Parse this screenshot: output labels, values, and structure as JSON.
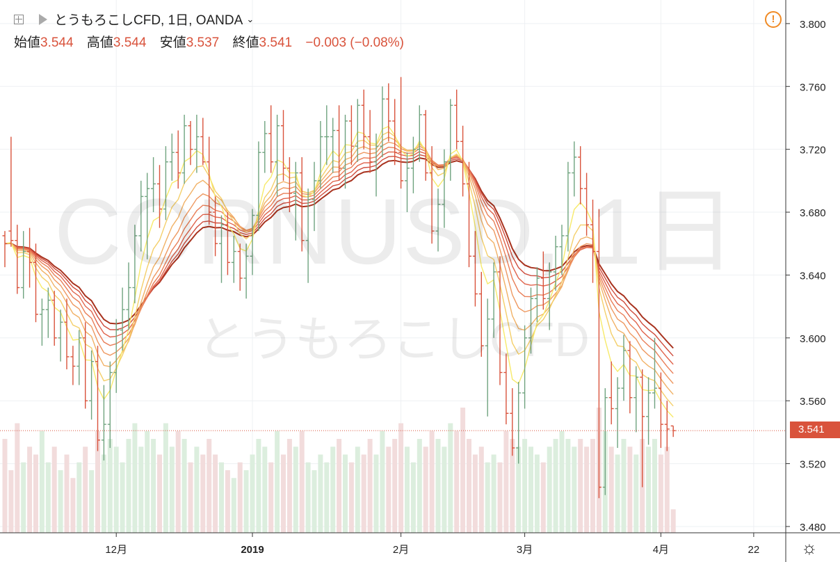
{
  "header": {
    "title": "とうもろこしCFD, 1日, OANDA",
    "ohlc": [
      {
        "label": "始値",
        "value": "3.544"
      },
      {
        "label": "高値",
        "value": "3.544"
      },
      {
        "label": "安値",
        "value": "3.537"
      },
      {
        "label": "終値",
        "value": "3.541"
      }
    ],
    "change": "−0.003 (−0.08%)"
  },
  "watermark": {
    "symbol": "CORNUSD, 1日",
    "name": "とうもろこしCFD"
  },
  "colors": {
    "up": "#6fa37f",
    "down": "#d9533c",
    "vol_up": "#dceede",
    "vol_down": "#f2dcdc",
    "grid": "#eef0f3"
  },
  "ribbon_colors": [
    "#f7ea6a",
    "#f4cf6a",
    "#f1b165",
    "#ee9860",
    "#e97e57",
    "#e0644c",
    "#cf4d3d",
    "#a8321e"
  ],
  "current_price": "3.541",
  "chart_data": {
    "type": "ohlc",
    "ylim": [
      3.476,
      3.815
    ],
    "y_ticks": [
      "3.800",
      "3.760",
      "3.720",
      "3.680",
      "3.640",
      "3.600",
      "3.560",
      "3.520",
      "3.480"
    ],
    "x_ticks": [
      {
        "label": "12月",
        "index": 18
      },
      {
        "label": "2019",
        "index": 40
      },
      {
        "label": "2月",
        "index": 64
      },
      {
        "label": "3月",
        "index": 84
      },
      {
        "label": "4月",
        "index": 106
      },
      {
        "label": "22",
        "index": 121
      }
    ],
    "bars": [
      [
        3.665,
        3.668,
        3.645,
        3.66,
        12
      ],
      [
        3.668,
        3.728,
        3.658,
        3.662,
        8
      ],
      [
        3.662,
        3.672,
        3.628,
        3.632,
        14
      ],
      [
        3.632,
        3.668,
        3.625,
        3.655,
        9
      ],
      [
        3.655,
        3.67,
        3.632,
        3.648,
        11
      ],
      [
        3.648,
        3.66,
        3.61,
        3.615,
        10
      ],
      [
        3.615,
        3.625,
        3.595,
        3.618,
        13
      ],
      [
        3.618,
        3.632,
        3.6,
        3.624,
        9
      ],
      [
        3.624,
        3.63,
        3.595,
        3.6,
        11
      ],
      [
        3.6,
        3.618,
        3.585,
        3.61,
        8
      ],
      [
        3.61,
        3.625,
        3.58,
        3.588,
        10
      ],
      [
        3.588,
        3.595,
        3.57,
        3.582,
        7
      ],
      [
        3.582,
        3.605,
        3.57,
        3.6,
        9
      ],
      [
        3.6,
        3.61,
        3.555,
        3.56,
        11
      ],
      [
        3.56,
        3.592,
        3.548,
        3.585,
        8
      ],
      [
        3.585,
        3.595,
        3.528,
        3.535,
        13
      ],
      [
        3.535,
        3.57,
        3.522,
        3.545,
        10
      ],
      [
        3.545,
        3.585,
        3.53,
        3.578,
        12
      ],
      [
        3.578,
        3.612,
        3.565,
        3.605,
        11
      ],
      [
        3.605,
        3.632,
        3.592,
        3.618,
        9
      ],
      [
        3.618,
        3.648,
        3.605,
        3.632,
        12
      ],
      [
        3.632,
        3.672,
        3.622,
        3.665,
        14
      ],
      [
        3.665,
        3.7,
        3.655,
        3.69,
        11
      ],
      [
        3.69,
        3.705,
        3.65,
        3.695,
        13
      ],
      [
        3.695,
        3.715,
        3.68,
        3.698,
        12
      ],
      [
        3.698,
        3.71,
        3.67,
        3.682,
        10
      ],
      [
        3.682,
        3.722,
        3.675,
        3.712,
        14
      ],
      [
        3.712,
        3.73,
        3.7,
        3.718,
        11
      ],
      [
        3.718,
        3.732,
        3.695,
        3.705,
        13
      ],
      [
        3.705,
        3.742,
        3.698,
        3.735,
        12
      ],
      [
        3.735,
        3.738,
        3.71,
        3.72,
        9
      ],
      [
        3.72,
        3.742,
        3.705,
        3.728,
        11
      ],
      [
        3.728,
        3.74,
        3.71,
        3.712,
        10
      ],
      [
        3.712,
        3.728,
        3.672,
        3.68,
        12
      ],
      [
        3.68,
        3.69,
        3.652,
        3.66,
        10
      ],
      [
        3.66,
        3.678,
        3.635,
        3.672,
        9
      ],
      [
        3.672,
        3.68,
        3.64,
        3.648,
        8
      ],
      [
        3.648,
        3.665,
        3.635,
        3.655,
        7
      ],
      [
        3.655,
        3.66,
        3.63,
        3.638,
        9
      ],
      [
        3.638,
        3.66,
        3.625,
        3.652,
        8
      ],
      [
        3.652,
        3.682,
        3.64,
        3.678,
        10
      ],
      [
        3.678,
        3.725,
        3.668,
        3.718,
        12
      ],
      [
        3.718,
        3.738,
        3.705,
        3.73,
        11
      ],
      [
        3.73,
        3.748,
        3.705,
        3.712,
        9
      ],
      [
        3.712,
        3.742,
        3.69,
        3.735,
        13
      ],
      [
        3.735,
        3.745,
        3.7,
        3.708,
        10
      ],
      [
        3.708,
        3.715,
        3.68,
        3.692,
        12
      ],
      [
        3.692,
        3.712,
        3.662,
        3.705,
        11
      ],
      [
        3.705,
        3.715,
        3.655,
        3.662,
        13
      ],
      [
        3.662,
        3.695,
        3.635,
        3.688,
        9
      ],
      [
        3.688,
        3.712,
        3.668,
        3.7,
        8
      ],
      [
        3.7,
        3.738,
        3.695,
        3.728,
        10
      ],
      [
        3.728,
        3.748,
        3.71,
        3.728,
        9
      ],
      [
        3.728,
        3.74,
        3.705,
        3.732,
        11
      ],
      [
        3.732,
        3.748,
        3.7,
        3.708,
        12
      ],
      [
        3.708,
        3.742,
        3.695,
        3.738,
        10
      ],
      [
        3.738,
        3.748,
        3.71,
        3.722,
        9
      ],
      [
        3.722,
        3.752,
        3.712,
        3.748,
        11
      ],
      [
        3.748,
        3.758,
        3.72,
        3.728,
        10
      ],
      [
        3.728,
        3.745,
        3.705,
        3.712,
        12
      ],
      [
        3.712,
        3.73,
        3.69,
        3.722,
        10
      ],
      [
        3.722,
        3.76,
        3.715,
        3.752,
        13
      ],
      [
        3.752,
        3.762,
        3.725,
        3.738,
        11
      ],
      [
        3.738,
        3.752,
        3.71,
        3.718,
        12
      ],
      [
        3.718,
        3.766,
        3.695,
        3.7,
        14
      ],
      [
        3.7,
        3.718,
        3.68,
        3.708,
        11
      ],
      [
        3.708,
        3.728,
        3.692,
        3.72,
        9
      ],
      [
        3.72,
        3.748,
        3.712,
        3.742,
        12
      ],
      [
        3.742,
        3.745,
        3.7,
        3.705,
        11
      ],
      [
        3.705,
        3.722,
        3.66,
        3.668,
        13
      ],
      [
        3.668,
        3.695,
        3.655,
        3.685,
        12
      ],
      [
        3.685,
        3.72,
        3.67,
        3.712,
        11
      ],
      [
        3.712,
        3.752,
        3.7,
        3.748,
        14
      ],
      [
        3.748,
        3.758,
        3.72,
        3.725,
        13
      ],
      [
        3.725,
        3.735,
        3.69,
        3.698,
        16
      ],
      [
        3.698,
        3.712,
        3.645,
        3.652,
        12
      ],
      [
        3.652,
        3.668,
        3.62,
        3.628,
        10
      ],
      [
        3.628,
        3.642,
        3.588,
        3.595,
        11
      ],
      [
        3.595,
        3.625,
        3.55,
        3.612,
        9
      ],
      [
        3.612,
        3.648,
        3.6,
        3.642,
        10
      ],
      [
        3.642,
        3.652,
        3.57,
        3.578,
        9
      ],
      [
        3.578,
        3.59,
        3.545,
        3.552,
        13
      ],
      [
        3.552,
        3.568,
        3.525,
        3.53,
        12
      ],
      [
        3.53,
        3.572,
        3.52,
        3.565,
        11
      ],
      [
        3.565,
        3.608,
        3.555,
        3.6,
        12
      ],
      [
        3.6,
        3.632,
        3.59,
        3.625,
        11
      ],
      [
        3.625,
        3.645,
        3.61,
        3.638,
        10
      ],
      [
        3.638,
        3.655,
        3.618,
        3.625,
        9
      ],
      [
        3.625,
        3.648,
        3.605,
        3.642,
        11
      ],
      [
        3.642,
        3.665,
        3.63,
        3.658,
        12
      ],
      [
        3.658,
        3.672,
        3.64,
        3.665,
        13
      ],
      [
        3.665,
        3.712,
        3.655,
        3.705,
        12
      ],
      [
        3.705,
        3.725,
        3.69,
        3.715,
        11
      ],
      [
        3.715,
        3.722,
        3.685,
        3.695,
        12
      ],
      [
        3.695,
        3.705,
        3.665,
        3.672,
        11
      ],
      [
        3.672,
        3.688,
        3.635,
        3.655,
        12
      ],
      [
        3.655,
        3.682,
        3.498,
        3.505,
        16
      ],
      [
        3.505,
        3.568,
        3.5,
        3.562,
        13
      ],
      [
        3.562,
        3.585,
        3.545,
        3.555,
        11
      ],
      [
        3.555,
        3.575,
        3.53,
        3.568,
        10
      ],
      [
        3.568,
        3.602,
        3.56,
        3.592,
        12
      ],
      [
        3.592,
        3.598,
        3.552,
        3.562,
        11
      ],
      [
        3.562,
        3.582,
        3.54,
        3.575,
        10
      ],
      [
        3.575,
        3.58,
        3.505,
        3.55,
        12
      ],
      [
        3.55,
        3.575,
        3.532,
        3.565,
        11
      ],
      [
        3.565,
        3.6,
        3.555,
        3.568,
        12
      ],
      [
        3.568,
        3.578,
        3.53,
        3.545,
        10
      ],
      [
        3.545,
        3.56,
        3.528,
        3.542,
        11
      ],
      [
        3.544,
        3.544,
        3.537,
        3.541,
        3
      ]
    ],
    "ribbons": [
      {
        "period": 5
      },
      {
        "period": 8
      },
      {
        "period": 11
      },
      {
        "period": 14
      },
      {
        "period": 17
      },
      {
        "period": 20
      },
      {
        "period": 23
      },
      {
        "period": 26
      }
    ]
  },
  "settings_icon": "gear-icon"
}
